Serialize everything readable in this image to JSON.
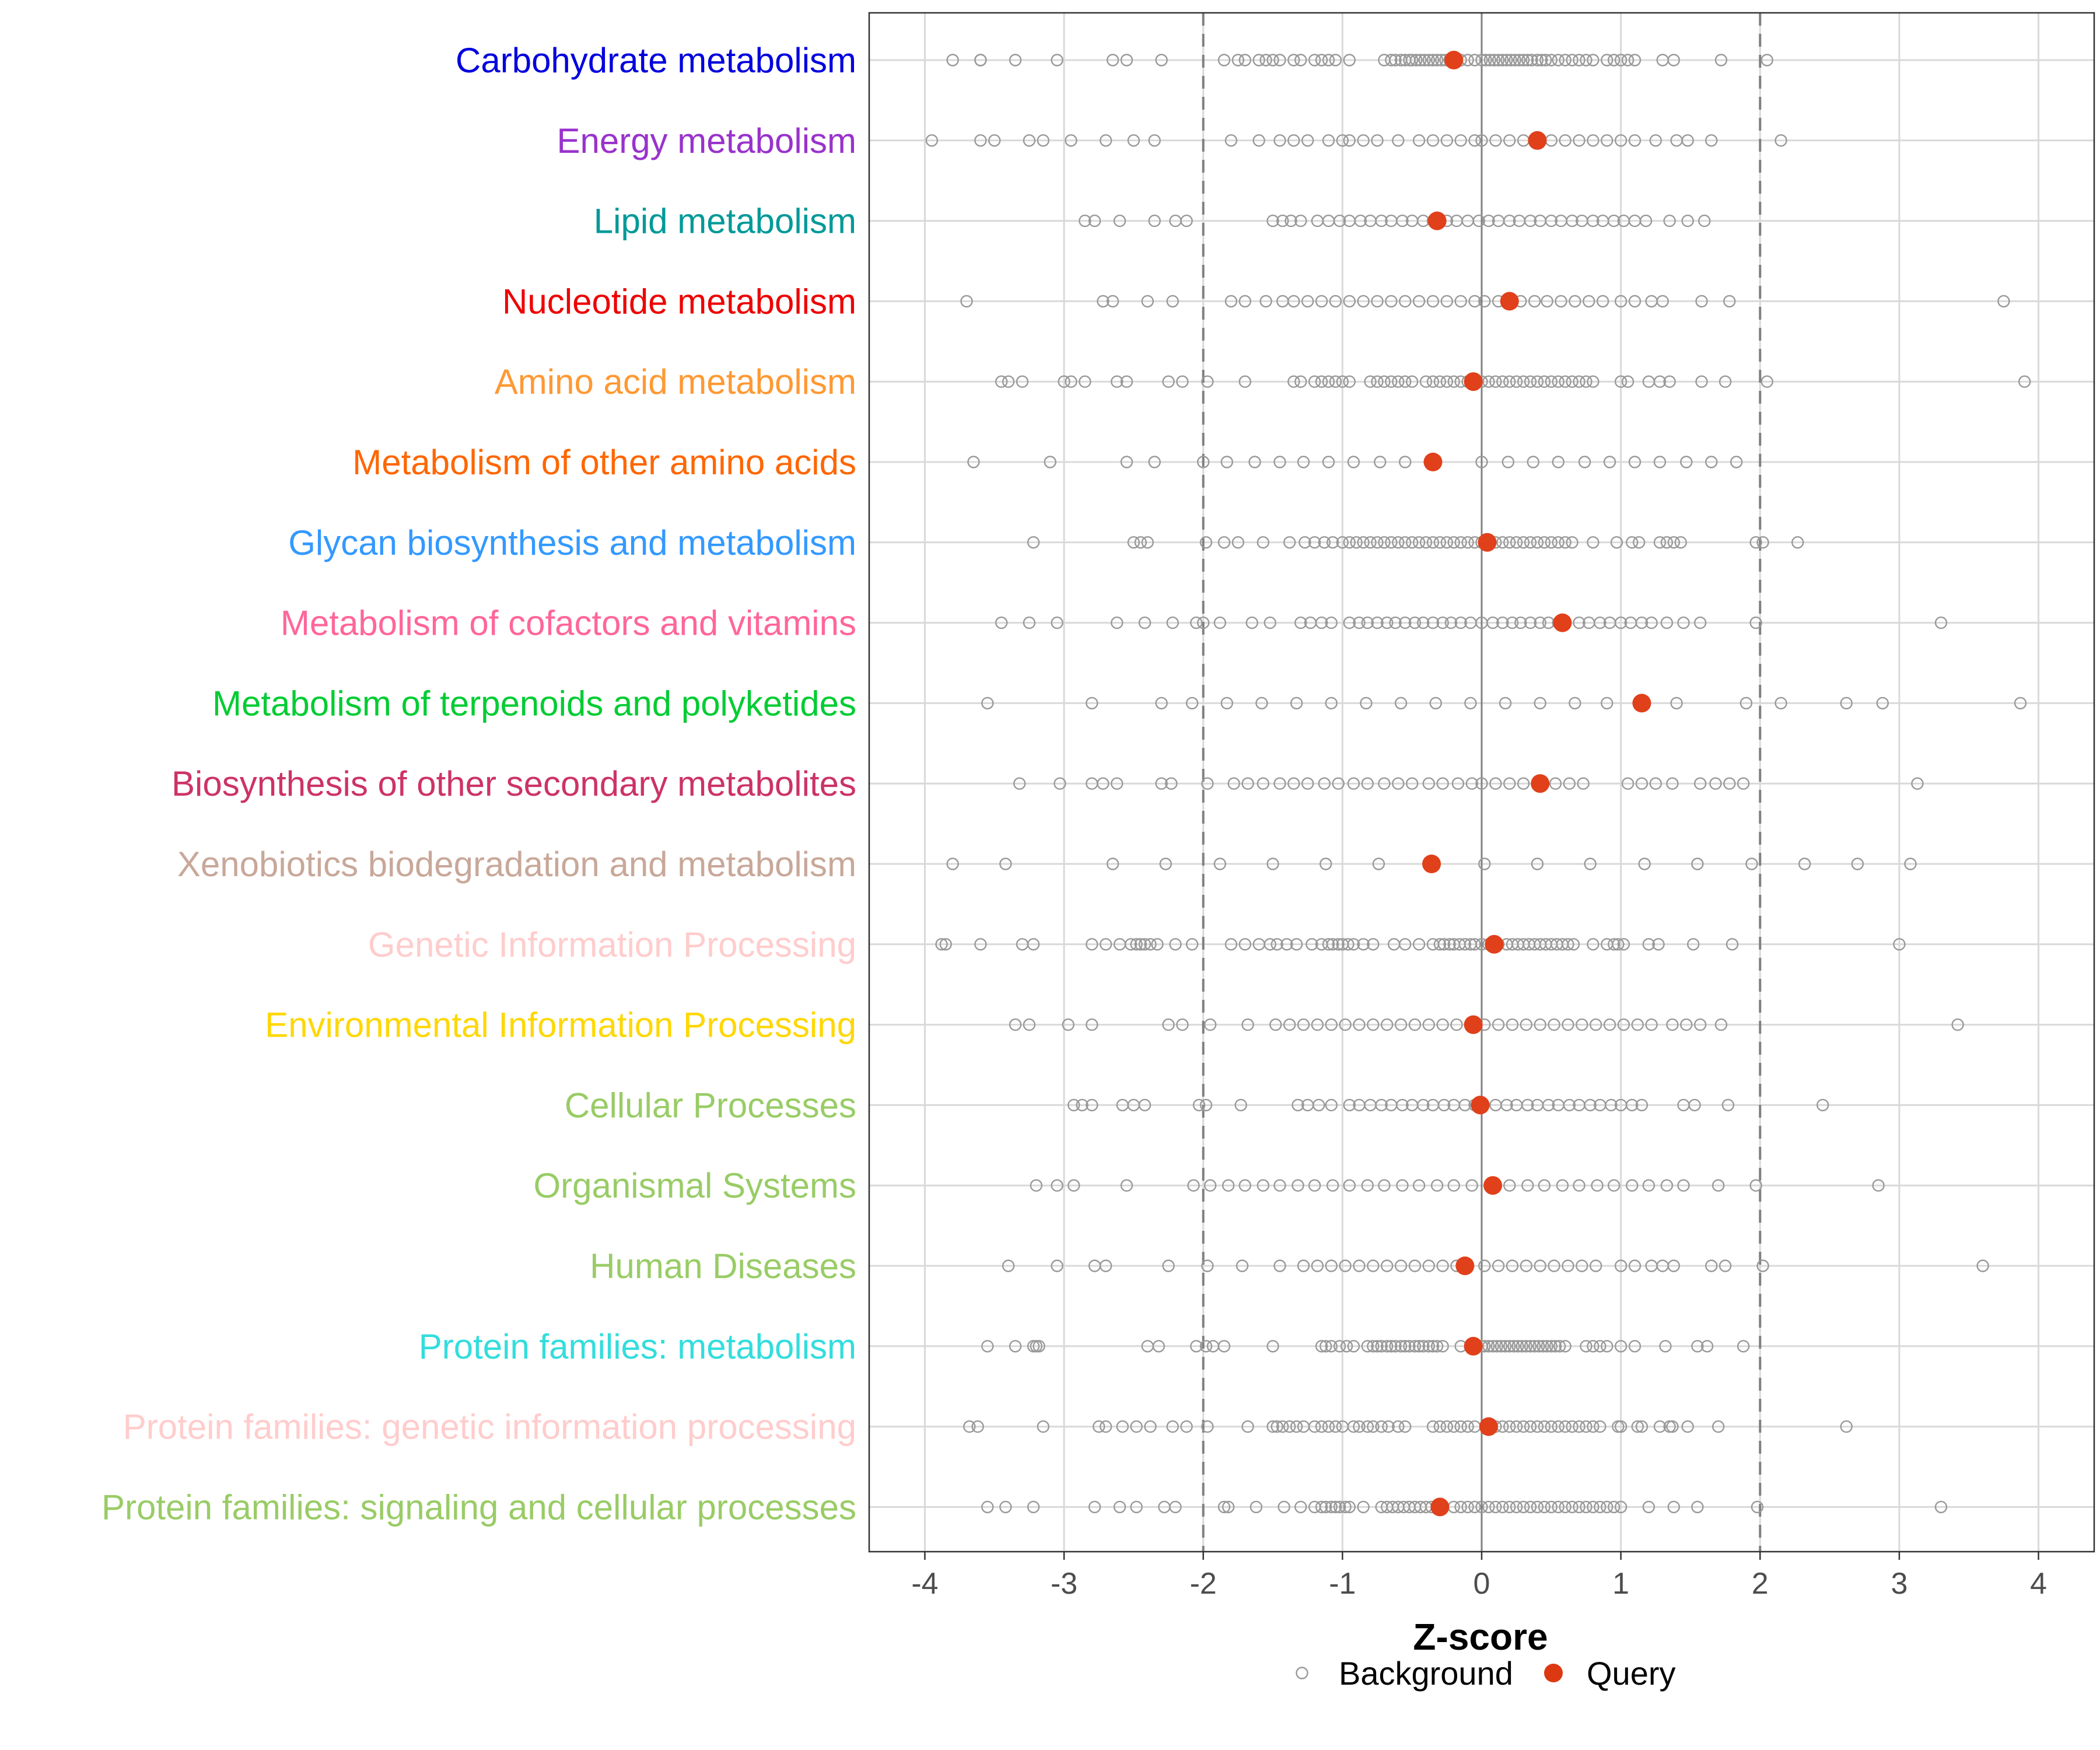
{
  "chart_data": {
    "type": "scatter",
    "title": "",
    "xlabel": "Z-score",
    "ylabel": "",
    "xlim": [
      -4.4,
      4.4
    ],
    "xticks": [
      -4,
      -3,
      -2,
      -1,
      0,
      1,
      2,
      3,
      4
    ],
    "tick_labels": [
      "-4",
      "-3",
      "-2",
      "-1",
      "0",
      "1",
      "2",
      "3",
      "4"
    ],
    "reference_lines": [
      -2,
      2
    ],
    "grid": true,
    "legend_position": "bottom",
    "legend": [
      {
        "name": "Background",
        "style": "hollow-circle",
        "color": "#999999"
      },
      {
        "name": "Query",
        "style": "filled-circle",
        "color": "#dc3912"
      }
    ],
    "colors": {
      "background_point": "#999999",
      "query_point": "#e0401a",
      "grid": "#d9d9d9",
      "zero_line": "#808080",
      "ref_line": "#7f7f7f"
    },
    "categories": [
      {
        "name": "Carbohydrate metabolism",
        "color": "#0000dd",
        "query": -0.2,
        "background": [
          -3.8,
          -3.6,
          -3.6,
          -3.35,
          -3.05,
          -2.65,
          -2.55,
          -2.3,
          -1.85,
          -1.75,
          -1.7,
          -1.6,
          -1.55,
          -1.5,
          -1.45,
          -1.35,
          -1.3,
          -1.2,
          -1.15,
          -1.1,
          -1.05,
          -0.95,
          -0.7,
          -0.65,
          -0.62,
          -0.58,
          -0.55,
          -0.52,
          -0.5,
          -0.47,
          -0.44,
          -0.41,
          -0.38,
          -0.35,
          -0.32,
          -0.29,
          -0.26,
          -0.23,
          -0.15,
          -0.1,
          -0.05,
          0,
          0.03,
          0.06,
          0.09,
          0.12,
          0.15,
          0.18,
          0.21,
          0.24,
          0.27,
          0.3,
          0.33,
          0.36,
          0.4,
          0.43,
          0.46,
          0.5,
          0.55,
          0.6,
          0.65,
          0.7,
          0.75,
          0.8,
          0.9,
          0.95,
          1.0,
          1.05,
          1.1,
          1.3,
          1.38,
          1.72,
          2.05
        ]
      },
      {
        "name": "Energy metabolism",
        "color": "#9932cc",
        "query": 0.4,
        "background": [
          -3.95,
          -3.6,
          -3.5,
          -3.25,
          -3.15,
          -2.95,
          -2.7,
          -2.5,
          -2.35,
          -1.8,
          -1.6,
          -1.45,
          -1.35,
          -1.25,
          -1.1,
          -1.0,
          -0.95,
          -0.85,
          -0.75,
          -0.6,
          -0.45,
          -0.35,
          -0.25,
          -0.15,
          -0.05,
          0.0,
          0.1,
          0.2,
          0.3,
          0.5,
          0.6,
          0.7,
          0.8,
          0.9,
          1.0,
          1.1,
          1.25,
          1.4,
          1.48,
          1.65,
          2.15
        ]
      },
      {
        "name": "Lipid metabolism",
        "color": "#009999",
        "query": -0.32,
        "background": [
          -2.85,
          -2.78,
          -2.6,
          -2.35,
          -2.2,
          -2.12,
          -1.5,
          -1.43,
          -1.37,
          -1.3,
          -1.18,
          -1.1,
          -1.02,
          -0.95,
          -0.87,
          -0.8,
          -0.72,
          -0.65,
          -0.57,
          -0.5,
          -0.42,
          -0.35,
          -0.25,
          -0.18,
          -0.1,
          -0.02,
          0.05,
          0.12,
          0.2,
          0.27,
          0.35,
          0.42,
          0.5,
          0.57,
          0.65,
          0.72,
          0.8,
          0.87,
          0.95,
          1.02,
          1.1,
          1.18,
          1.35,
          1.48,
          1.6
        ]
      },
      {
        "name": "Nucleotide metabolism",
        "color": "#ee0000",
        "query": 0.2,
        "background": [
          -3.7,
          -2.72,
          -2.65,
          -2.4,
          -2.22,
          -1.8,
          -1.7,
          -1.55,
          -1.43,
          -1.35,
          -1.25,
          -1.15,
          -1.05,
          -0.95,
          -0.85,
          -0.75,
          -0.65,
          -0.55,
          -0.45,
          -0.35,
          -0.25,
          -0.15,
          -0.05,
          0.02,
          0.12,
          0.28,
          0.38,
          0.47,
          0.57,
          0.67,
          0.77,
          0.87,
          1.0,
          1.1,
          1.22,
          1.3,
          1.58,
          1.78,
          3.75
        ]
      },
      {
        "name": "Amino acid metabolism",
        "color": "#ff9933",
        "query": -0.06,
        "background": [
          -3.45,
          -3.4,
          -3.3,
          -3.0,
          -2.95,
          -2.85,
          -2.62,
          -2.55,
          -2.25,
          -2.15,
          -1.97,
          -1.7,
          -1.35,
          -1.3,
          -1.2,
          -1.15,
          -1.1,
          -1.05,
          -1.0,
          -0.95,
          -0.8,
          -0.75,
          -0.7,
          -0.65,
          -0.6,
          -0.55,
          -0.5,
          -0.4,
          -0.35,
          -0.3,
          -0.25,
          -0.2,
          -0.15,
          -0.1,
          0.0,
          0.05,
          0.1,
          0.15,
          0.2,
          0.25,
          0.3,
          0.35,
          0.4,
          0.45,
          0.5,
          0.55,
          0.6,
          0.65,
          0.7,
          0.75,
          0.8,
          1.0,
          1.05,
          1.2,
          1.28,
          1.35,
          1.58,
          1.75,
          2.05,
          3.9
        ]
      },
      {
        "name": "Metabolism of other amino acids",
        "color": "#ff6600",
        "query": -0.35,
        "background": [
          -3.65,
          -3.1,
          -2.55,
          -2.35,
          -2.0,
          -1.83,
          -1.63,
          -1.45,
          -1.28,
          -1.1,
          -0.92,
          -0.73,
          -0.55,
          0.0,
          0.19,
          0.37,
          0.55,
          0.74,
          0.92,
          1.1,
          1.28,
          1.47,
          1.65,
          1.83
        ]
      },
      {
        "name": "Glycan biosynthesis and metabolism",
        "color": "#3399ff",
        "query": 0.04,
        "background": [
          -3.22,
          -2.5,
          -2.45,
          -2.4,
          -1.98,
          -1.85,
          -1.75,
          -1.57,
          -1.38,
          -1.27,
          -1.2,
          -1.13,
          -1.07,
          -1.0,
          -0.95,
          -0.9,
          -0.85,
          -0.8,
          -0.75,
          -0.7,
          -0.65,
          -0.6,
          -0.55,
          -0.5,
          -0.45,
          -0.4,
          -0.35,
          -0.3,
          -0.25,
          -0.2,
          -0.15,
          -0.1,
          -0.05,
          0.0,
          0.1,
          0.15,
          0.2,
          0.25,
          0.3,
          0.35,
          0.4,
          0.45,
          0.5,
          0.55,
          0.6,
          0.65,
          0.8,
          0.97,
          1.08,
          1.13,
          1.28,
          1.33,
          1.38,
          1.43,
          1.97,
          2.02,
          2.27
        ]
      },
      {
        "name": "Metabolism of cofactors and vitamins",
        "color": "#ff6699",
        "query": 0.58,
        "background": [
          -3.45,
          -3.25,
          -3.05,
          -2.62,
          -2.42,
          -2.22,
          -2.05,
          -2.0,
          -1.88,
          -1.65,
          -1.52,
          -1.3,
          -1.23,
          -1.15,
          -1.08,
          -0.95,
          -0.88,
          -0.82,
          -0.75,
          -0.68,
          -0.62,
          -0.55,
          -0.48,
          -0.42,
          -0.35,
          -0.28,
          -0.22,
          -0.15,
          -0.08,
          0.0,
          0.08,
          0.15,
          0.22,
          0.28,
          0.35,
          0.42,
          0.48,
          0.55,
          0.7,
          0.77,
          0.85,
          0.92,
          1.0,
          1.07,
          1.15,
          1.22,
          1.33,
          1.45,
          1.57,
          1.97,
          3.3
        ]
      },
      {
        "name": "Metabolism of terpenoids and polyketides",
        "color": "#00cc33",
        "query": 1.15,
        "background": [
          -3.55,
          -2.8,
          -2.3,
          -2.08,
          -1.83,
          -1.58,
          -1.33,
          -1.08,
          -0.83,
          -0.58,
          -0.33,
          -0.08,
          0.17,
          0.42,
          0.67,
          0.9,
          1.4,
          1.9,
          2.15,
          2.62,
          2.88,
          3.87
        ]
      },
      {
        "name": "Biosynthesis of other secondary metabolites",
        "color": "#cc3366",
        "query": 0.42,
        "background": [
          -3.32,
          -3.03,
          -2.8,
          -2.72,
          -2.62,
          -2.3,
          -2.23,
          -1.97,
          -1.78,
          -1.68,
          -1.57,
          -1.45,
          -1.35,
          -1.25,
          -1.13,
          -1.03,
          -0.92,
          -0.82,
          -0.7,
          -0.6,
          -0.5,
          -0.38,
          -0.28,
          -0.17,
          -0.07,
          0.0,
          0.1,
          0.2,
          0.3,
          0.53,
          0.63,
          0.73,
          1.05,
          1.15,
          1.25,
          1.37,
          1.57,
          1.68,
          1.78,
          1.88,
          3.13
        ]
      },
      {
        "name": "Xenobiotics biodegradation and metabolism",
        "color": "#c8a89a",
        "query": -0.36,
        "background": [
          -3.8,
          -3.42,
          -2.65,
          -2.27,
          -1.88,
          -1.5,
          -1.12,
          -0.74,
          0.02,
          0.4,
          0.78,
          1.17,
          1.55,
          1.94,
          2.32,
          2.7,
          3.08
        ]
      },
      {
        "name": "Genetic Information Processing",
        "color": "#ffcccc",
        "query": 0.09,
        "background": [
          -3.88,
          -3.85,
          -3.6,
          -3.3,
          -3.22,
          -2.8,
          -2.7,
          -2.6,
          -2.52,
          -2.48,
          -2.45,
          -2.42,
          -2.38,
          -2.33,
          -2.2,
          -2.08,
          -1.8,
          -1.7,
          -1.6,
          -1.52,
          -1.47,
          -1.4,
          -1.33,
          -1.22,
          -1.15,
          -1.1,
          -1.07,
          -1.03,
          -1.0,
          -0.96,
          -0.92,
          -0.85,
          -0.78,
          -0.63,
          -0.55,
          -0.45,
          -0.35,
          -0.3,
          -0.27,
          -0.23,
          -0.2,
          -0.16,
          -0.12,
          -0.08,
          -0.05,
          0.0,
          0.05,
          0.12,
          0.18,
          0.22,
          0.26,
          0.3,
          0.34,
          0.38,
          0.42,
          0.46,
          0.5,
          0.54,
          0.58,
          0.62,
          0.66,
          0.8,
          0.9,
          0.95,
          0.98,
          1.02,
          1.2,
          1.27,
          1.52,
          1.8,
          3.0
        ]
      },
      {
        "name": "Environmental Information Processing",
        "color": "#ffd700",
        "query": -0.06,
        "background": [
          -3.35,
          -3.25,
          -2.97,
          -2.8,
          -2.25,
          -2.15,
          -1.95,
          -1.68,
          -1.48,
          -1.38,
          -1.28,
          -1.18,
          -1.08,
          -0.98,
          -0.88,
          -0.78,
          -0.68,
          -0.58,
          -0.48,
          -0.38,
          -0.28,
          -0.18,
          -0.08,
          0.02,
          0.12,
          0.22,
          0.32,
          0.42,
          0.52,
          0.62,
          0.72,
          0.82,
          0.92,
          1.02,
          1.12,
          1.22,
          1.37,
          1.47,
          1.57,
          1.72,
          3.42
        ]
      },
      {
        "name": "Cellular Processes",
        "color": "#99cc66",
        "query": -0.01,
        "background": [
          -2.93,
          -2.87,
          -2.8,
          -2.58,
          -2.5,
          -2.42,
          -2.03,
          -1.98,
          -1.73,
          -1.32,
          -1.25,
          -1.17,
          -1.08,
          -0.95,
          -0.88,
          -0.8,
          -0.72,
          -0.65,
          -0.57,
          -0.5,
          -0.42,
          -0.35,
          -0.27,
          -0.2,
          -0.12,
          -0.05,
          0.1,
          0.18,
          0.25,
          0.33,
          0.4,
          0.48,
          0.55,
          0.63,
          0.7,
          0.78,
          0.85,
          0.93,
          1.0,
          1.08,
          1.15,
          1.45,
          1.53,
          1.77,
          2.45
        ]
      },
      {
        "name": "Organismal Systems",
        "color": "#99cc66",
        "query": 0.08,
        "background": [
          -3.2,
          -3.05,
          -2.93,
          -2.55,
          -2.07,
          -1.95,
          -1.82,
          -1.7,
          -1.57,
          -1.45,
          -1.32,
          -1.2,
          -1.07,
          -0.95,
          -0.82,
          -0.7,
          -0.57,
          -0.45,
          -0.32,
          -0.2,
          -0.07,
          0.2,
          0.33,
          0.45,
          0.58,
          0.7,
          0.83,
          0.95,
          1.08,
          1.2,
          1.33,
          1.45,
          1.7,
          1.97,
          2.85
        ]
      },
      {
        "name": "Human Diseases",
        "color": "#99cc66",
        "query": -0.12,
        "background": [
          -3.4,
          -3.05,
          -2.78,
          -2.7,
          -2.25,
          -1.97,
          -1.72,
          -1.45,
          -1.28,
          -1.18,
          -1.08,
          -0.98,
          -0.88,
          -0.78,
          -0.68,
          -0.58,
          -0.48,
          -0.38,
          -0.28,
          -0.18,
          0.02,
          0.12,
          0.22,
          0.32,
          0.42,
          0.52,
          0.62,
          0.72,
          0.82,
          1.0,
          1.1,
          1.22,
          1.3,
          1.38,
          1.65,
          1.75,
          2.02,
          3.6
        ]
      },
      {
        "name": "Protein families: metabolism",
        "color": "#33dddd",
        "query": -0.06,
        "background": [
          -3.55,
          -3.35,
          -3.22,
          -3.2,
          -3.18,
          -2.4,
          -2.32,
          -2.05,
          -1.98,
          -1.93,
          -1.85,
          -1.5,
          -1.15,
          -1.12,
          -1.08,
          -1.02,
          -0.97,
          -0.92,
          -0.82,
          -0.78,
          -0.75,
          -0.72,
          -0.68,
          -0.65,
          -0.62,
          -0.58,
          -0.55,
          -0.52,
          -0.48,
          -0.45,
          -0.42,
          -0.38,
          -0.35,
          -0.32,
          -0.28,
          -0.15,
          0.0,
          0.02,
          0.05,
          0.08,
          0.11,
          0.14,
          0.17,
          0.2,
          0.23,
          0.26,
          0.29,
          0.32,
          0.35,
          0.38,
          0.41,
          0.44,
          0.47,
          0.5,
          0.53,
          0.56,
          0.6,
          0.75,
          0.8,
          0.85,
          0.9,
          1.0,
          1.1,
          1.32,
          1.55,
          1.62,
          1.88
        ]
      },
      {
        "name": "Protein families: genetic information processing",
        "color": "#ffcccc",
        "query": 0.05,
        "background": [
          -3.68,
          -3.62,
          -3.15,
          -2.75,
          -2.7,
          -2.58,
          -2.48,
          -2.38,
          -2.22,
          -2.12,
          -1.97,
          -1.68,
          -1.5,
          -1.47,
          -1.43,
          -1.38,
          -1.33,
          -1.28,
          -1.2,
          -1.15,
          -1.1,
          -1.05,
          -1.0,
          -0.92,
          -0.88,
          -0.82,
          -0.78,
          -0.72,
          -0.67,
          -0.6,
          -0.55,
          -0.35,
          -0.3,
          -0.25,
          -0.2,
          -0.15,
          -0.1,
          -0.05,
          0.1,
          0.15,
          0.2,
          0.25,
          0.3,
          0.35,
          0.4,
          0.45,
          0.5,
          0.55,
          0.6,
          0.65,
          0.7,
          0.75,
          0.8,
          0.85,
          0.98,
          1.0,
          1.12,
          1.15,
          1.28,
          1.35,
          1.37,
          1.48,
          1.7,
          2.62
        ]
      },
      {
        "name": "Protein families: signaling and cellular processes",
        "color": "#99cc66",
        "query": -0.3,
        "background": [
          -3.55,
          -3.42,
          -3.22,
          -2.78,
          -2.6,
          -2.48,
          -2.28,
          -2.2,
          -1.85,
          -1.82,
          -1.62,
          -1.42,
          -1.3,
          -1.2,
          -1.15,
          -1.12,
          -1.08,
          -1.05,
          -1.02,
          -0.98,
          -0.95,
          -0.85,
          -0.72,
          -0.68,
          -0.64,
          -0.6,
          -0.56,
          -0.52,
          -0.48,
          -0.44,
          -0.4,
          -0.36,
          -0.2,
          -0.15,
          -0.1,
          -0.05,
          0.0,
          0.05,
          0.1,
          0.15,
          0.2,
          0.25,
          0.3,
          0.35,
          0.4,
          0.45,
          0.5,
          0.55,
          0.6,
          0.65,
          0.7,
          0.75,
          0.8,
          0.85,
          0.9,
          0.95,
          1.0,
          1.2,
          1.38,
          1.55,
          1.98,
          3.3
        ]
      }
    ]
  }
}
